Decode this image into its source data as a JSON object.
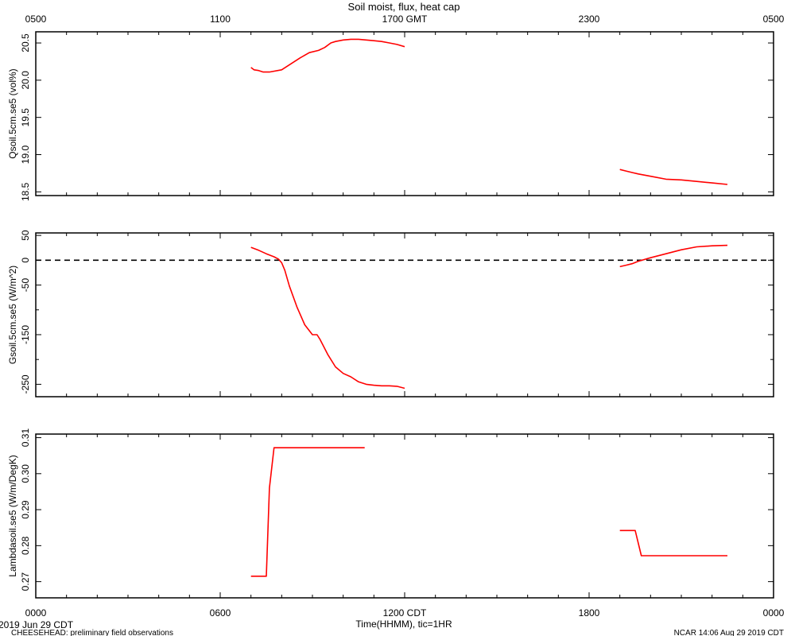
{
  "title": "Soil moist, flux, heat cap",
  "footer": {
    "date": "2019 Jun 29 CDT",
    "project": "CHEESEHEAD: preliminary field observations",
    "stamp": "NCAR 14:06 Aug 29 2019 CDT",
    "xlabel": "Time(HHMM), tic=1HR"
  },
  "colors": {
    "series": "#ff0000",
    "axes": "#000000",
    "background": "#ffffff"
  },
  "top_axis": {
    "range_hours_gmt": [
      5,
      29
    ],
    "labels": [
      {
        "hour": 5,
        "text": "0500"
      },
      {
        "hour": 11,
        "text": "1100"
      },
      {
        "hour": 17,
        "text": "1700 GMT"
      },
      {
        "hour": 23,
        "text": "2300"
      },
      {
        "hour": 29,
        "text": "0500"
      }
    ]
  },
  "bottom_axis": {
    "range_hours_cdt": [
      0,
      24
    ],
    "labels": [
      {
        "hour": 0,
        "text": "0000"
      },
      {
        "hour": 6,
        "text": "0600"
      },
      {
        "hour": 12,
        "text": "1200 CDT"
      },
      {
        "hour": 18,
        "text": "1800"
      },
      {
        "hour": 24,
        "text": "0000"
      }
    ]
  },
  "chart_data": [
    {
      "type": "line",
      "ylabel": "Qsoil.5cm.se5 (vol%)",
      "ylim": [
        18.45,
        20.65
      ],
      "yticks": [
        18.5,
        19.0,
        19.5,
        20.0,
        20.5
      ],
      "ytick_labels": [
        "18.5",
        "19.0",
        "19.5",
        "20.0",
        "20.5"
      ],
      "xlabel": "Time (CDT hours)",
      "series": [
        {
          "segments": [
            {
              "x": [
                7.0,
                7.1,
                7.25,
                7.4,
                7.6,
                8.0,
                8.3,
                8.6,
                8.9,
                9.2,
                9.4,
                9.6,
                9.75,
                10.0,
                10.25,
                10.5,
                10.75,
                11.0,
                11.25,
                11.5,
                11.75,
                12.0
              ],
              "y": [
                20.17,
                20.14,
                20.13,
                20.11,
                20.11,
                20.14,
                20.22,
                20.3,
                20.37,
                20.4,
                20.44,
                20.5,
                20.52,
                20.54,
                20.55,
                20.55,
                20.54,
                20.53,
                20.52,
                20.5,
                20.48,
                20.45
              ]
            },
            {
              "x": [
                19.0,
                19.2,
                19.4,
                19.6,
                20.0,
                20.5,
                21.0,
                21.5,
                22.0,
                22.5
              ],
              "y": [
                18.8,
                18.78,
                18.76,
                18.74,
                18.71,
                18.67,
                18.66,
                18.64,
                18.62,
                18.6
              ]
            }
          ]
        }
      ]
    },
    {
      "type": "line",
      "ylabel": "Gsoil.5cm.se5 (W/m^2)",
      "ylim": [
        -275,
        55
      ],
      "yticks": [
        50,
        0,
        -50,
        -150,
        -250
      ],
      "ytick_labels": [
        "50",
        "0",
        "-50",
        "-150",
        "-250"
      ],
      "minor_ticks": [
        -100,
        -200
      ],
      "reference_line": 0,
      "xlabel": "Time (CDT hours)",
      "series": [
        {
          "segments": [
            {
              "x": [
                7.0,
                7.25,
                7.5,
                7.75,
                7.9,
                8.0,
                8.1,
                8.25,
                8.5,
                8.75,
                9.0,
                9.15,
                9.25,
                9.5,
                9.75,
                10.0,
                10.25,
                10.5,
                10.75,
                11.0,
                11.25,
                11.5,
                11.75,
                12.0
              ],
              "y": [
                26,
                20,
                13,
                7,
                2,
                -5,
                -20,
                -52,
                -95,
                -130,
                -150,
                -150,
                -160,
                -190,
                -215,
                -228,
                -235,
                -245,
                -250,
                -252,
                -253,
                -253,
                -254,
                -258
              ]
            },
            {
              "x": [
                19.0,
                19.2,
                19.4,
                19.6,
                20.0,
                20.5,
                21.0,
                21.5,
                22.0,
                22.5
              ],
              "y": [
                -13,
                -10,
                -7,
                -2,
                5,
                13,
                21,
                27,
                29,
                30
              ]
            }
          ]
        }
      ]
    },
    {
      "type": "line",
      "ylabel": "Lambdasoil.se5 (W/m/DegK)",
      "ylim": [
        0.2655,
        0.311
      ],
      "yticks": [
        0.27,
        0.28,
        0.29,
        0.3,
        0.31
      ],
      "ytick_labels": [
        "0.27",
        "0.28",
        "0.29",
        "0.30",
        "0.31"
      ],
      "xlabel": "Time (CDT hours)",
      "series": [
        {
          "segments": [
            {
              "x": [
                7.0,
                7.5,
                7.6,
                7.75,
                8.0,
                10.7
              ],
              "y": [
                0.2715,
                0.2715,
                0.296,
                0.3072,
                0.3072,
                0.3072
              ]
            },
            {
              "x": [
                19.0,
                19.5,
                19.7,
                22.5
              ],
              "y": [
                0.2842,
                0.2842,
                0.2772,
                0.2772
              ]
            }
          ]
        }
      ]
    }
  ]
}
